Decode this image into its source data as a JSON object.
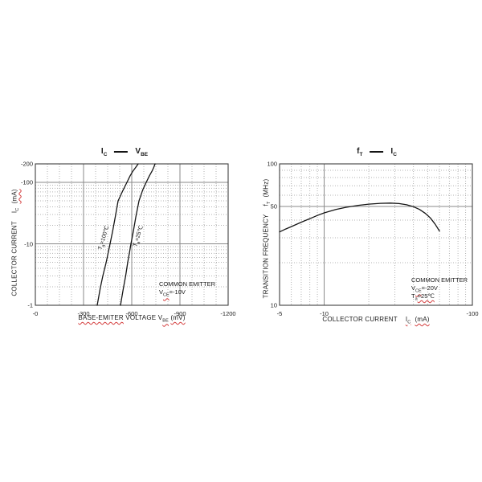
{
  "colors": {
    "background": "#ffffff",
    "frame": "#3f3f3f",
    "major_grid": "#8a8a8a",
    "minor_grid": "#b3b3b3",
    "curve": "#151515",
    "text": "#1a1a1a",
    "spellcheck_underline": "#d43c3c"
  },
  "chart_data": [
    {
      "type": "line",
      "title": {
        "lhs": "I",
        "lhs_sub": "C",
        "rhs": "V",
        "rhs_sub": "BE"
      },
      "x_axis": {
        "type": "linear",
        "range": [
          0,
          -1200
        ],
        "unit": "mV",
        "majors": [
          -300,
          -600,
          -900
        ],
        "minor_step": 75,
        "ticks": [
          {
            "v": 0,
            "t": "-0"
          },
          {
            "v": -300,
            "t": "-300"
          },
          {
            "v": -600,
            "t": "-600"
          },
          {
            "v": -900,
            "t": "-900"
          },
          {
            "v": -1200,
            "t": "-1200"
          }
        ],
        "label": {
          "word1": "BASE-EMITER",
          "word2": "VOLTAGE V",
          "sub": "BE",
          "unit": "(mV)"
        }
      },
      "y_axis": {
        "type": "log",
        "range": [
          -1,
          -200
        ],
        "unit": "mA",
        "solids": [
          -10,
          -100
        ],
        "ticks": [
          {
            "v": -200,
            "t": "-200"
          },
          {
            "v": -100,
            "t": "-100"
          },
          {
            "v": -10,
            "t": "-10"
          },
          {
            "v": -1,
            "t": "-1"
          }
        ],
        "label": {
          "word1": "COLLECTOR CURRENT",
          "sym": "I",
          "sym_sub": "C",
          "unit": "(mA)"
        }
      },
      "series": [
        {
          "name": "Ta=100C",
          "label": {
            "sym": "T",
            "sub": "a",
            "rest": "=100℃"
          },
          "points": [
            [
              -385,
              -1
            ],
            [
              -404,
              -1.9
            ],
            [
              -420,
              -3
            ],
            [
              -441,
              -5
            ],
            [
              -455,
              -7.5
            ],
            [
              -465,
              -10
            ],
            [
              -481,
              -16
            ],
            [
              -497,
              -27
            ],
            [
              -515,
              -50
            ],
            [
              -543,
              -72
            ],
            [
              -570,
              -100
            ],
            [
              -590,
              -128
            ],
            [
              -607,
              -152
            ],
            [
              -625,
              -176
            ],
            [
              -640,
              -200
            ]
          ]
        },
        {
          "name": "Ta=25C",
          "label": {
            "sym": "T",
            "sub": "a",
            "rest": "=25℃"
          },
          "points": [
            [
              -530,
              -1
            ],
            [
              -548,
              -1.9
            ],
            [
              -562,
              -3
            ],
            [
              -575,
              -5
            ],
            [
              -587,
              -7.5
            ],
            [
              -595,
              -10
            ],
            [
              -610,
              -16
            ],
            [
              -625,
              -27
            ],
            [
              -645,
              -50
            ],
            [
              -669,
              -76
            ],
            [
              -690,
              -100
            ],
            [
              -710,
              -128
            ],
            [
              -726,
              -152
            ],
            [
              -737,
              -175
            ],
            [
              -745,
              -200
            ]
          ]
        }
      ],
      "annotations": {
        "line1": "COMMON EMITTER",
        "line2_sym": "V",
        "line2_sub": "CE",
        "line2_rest": "=-10V"
      }
    },
    {
      "type": "line",
      "title": {
        "lhs": "f",
        "lhs_sub": "T",
        "rhs": "I",
        "rhs_sub": "C"
      },
      "x_axis": {
        "type": "log",
        "range": [
          -5,
          -100
        ],
        "unit": "mA",
        "solids": [
          -10
        ],
        "ticks": [
          {
            "v": -5,
            "t": "-5"
          },
          {
            "v": -10,
            "t": "-10"
          },
          {
            "v": -100,
            "t": "-100"
          }
        ],
        "label": {
          "word1": "COLLECTOR CURRENT",
          "sym": "I",
          "sym_sub": "C",
          "unit": "(mA)"
        }
      },
      "y_axis": {
        "type": "log",
        "range": [
          10,
          100
        ],
        "unit": "MHz",
        "solids": [
          50
        ],
        "ticks": [
          {
            "v": 100,
            "t": "100"
          },
          {
            "v": 50,
            "t": "50"
          },
          {
            "v": 10,
            "t": "10"
          }
        ],
        "label": {
          "word1": "TRANSITION FREQUENCY",
          "sym": "f",
          "sym_sub": "T",
          "unit": "(MHz)"
        }
      },
      "series": [
        {
          "name": "fT",
          "points": [
            [
              -5,
              33
            ],
            [
              -5.5,
              34.6
            ],
            [
              -6,
              36
            ],
            [
              -7,
              38.7
            ],
            [
              -8,
              41
            ],
            [
              -9,
              43.2
            ],
            [
              -10,
              45
            ],
            [
              -12,
              47.6
            ],
            [
              -14,
              49.3
            ],
            [
              -17,
              50.9
            ],
            [
              -20,
              51.9
            ],
            [
              -24,
              52.6
            ],
            [
              -28,
              52.8
            ],
            [
              -32,
              52.4
            ],
            [
              -36,
              51.4
            ],
            [
              -40,
              49.8
            ],
            [
              -44,
              47.6
            ],
            [
              -48,
              44.8
            ],
            [
              -52,
              41.5
            ],
            [
              -56,
              37.6
            ],
            [
              -60,
              33.5
            ]
          ]
        }
      ],
      "annotations": {
        "line1": "COMMON EMITTER",
        "line2_sym": "V",
        "line2_sub": "CE",
        "line2_rest": "=-20V",
        "line3_sym": "T",
        "line3_sub": "a",
        "line3_rest": "=25℃"
      }
    }
  ]
}
